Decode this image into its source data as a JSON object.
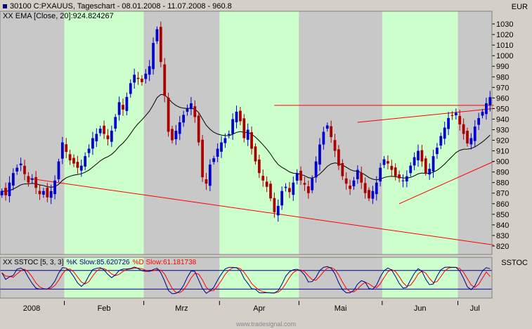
{
  "header": {
    "title": "30100 C:PXAUUS, Tageschart - 08.01.2008 - 11.07.2008 - 960.8",
    "ema_label": "XX EMA [Close, 20]:924.824267",
    "title_square_color": "#000080",
    "ema_square_color": "#000000"
  },
  "right_axis": {
    "currency": "EUR",
    "stoch_label": "SSTOC"
  },
  "stoch_header": {
    "prefix": "XX SSTOC [5, 3, 3]",
    "k_text": "%K Slow:85.620726",
    "d_text": "%D Slow:61.181738",
    "k_color": "#000080",
    "d_color": "#ff0000"
  },
  "colors": {
    "band_green": "#ccffcc",
    "band_grey": "#c8c8c8",
    "candle_up": "#0000cc",
    "candle_down": "#aa0000",
    "ema": "#000000",
    "trendline": "#ff0000",
    "stoch_k": "#000080",
    "stoch_d": "#ff0000"
  },
  "watermark": "www.tradesignal.com",
  "chart_data": {
    "type": "candlestick",
    "title": "30100 C:PXAUUS, Tageschart - 08.01.2008 - 11.07.2008 - 960.8",
    "y_range": [
      812,
      1042
    ],
    "y_ticks": [
      820,
      830,
      840,
      850,
      860,
      870,
      880,
      890,
      900,
      910,
      920,
      930,
      940,
      950,
      960,
      970,
      980,
      990,
      1000,
      1010,
      1020,
      1030
    ],
    "x_month_labels": [
      "2008",
      "Feb",
      "Mrz",
      "Apr",
      "Mai",
      "Jun",
      "Jul"
    ],
    "month_starts": [
      0,
      17,
      38,
      58,
      79,
      101,
      121
    ],
    "bar_count": 133,
    "shaded_months": [
      "Feb",
      "Apr",
      "Jun"
    ],
    "series": [
      {
        "name": "PXAUUS",
        "values": [
          872,
          868,
          880,
          889,
          894,
          898,
          888,
          880,
          884,
          875,
          869,
          872,
          866,
          872,
          882,
          900,
          918,
          909,
          901,
          898,
          894,
          896,
          905,
          912,
          922,
          926,
          931,
          926,
          921,
          929,
          942,
          956,
          949,
          961,
          974,
          982,
          978,
          975,
          983,
          990,
          1012,
          1025,
          994,
          962,
          928,
          920,
          929,
          937,
          944,
          950,
          955,
          942,
          918,
          885,
          879,
          897,
          903,
          912,
          918,
          922,
          926,
          940,
          947,
          938,
          922,
          930,
          912,
          900,
          889,
          882,
          876,
          865,
          852,
          858,
          872,
          876,
          871,
          880,
          889,
          882,
          878,
          870,
          884,
          900,
          916,
          928,
          934,
          923,
          910,
          896,
          886,
          879,
          874,
          882,
          892,
          880,
          870,
          865,
          872,
          880,
          894,
          902,
          898,
          892,
          886,
          884,
          882,
          886,
          896,
          904,
          910,
          900,
          889,
          893,
          905,
          913,
          924,
          932,
          941,
          943,
          946,
          935,
          926,
          917,
          922,
          933,
          941,
          947,
          955,
          960.8
        ]
      },
      {
        "name": "XX EMA [Close, 20]",
        "values": []
      }
    ],
    "ema": {
      "period": 20,
      "last_value": 924.824267
    },
    "trendlines": [
      {
        "from": [
          7,
          884
        ],
        "to": [
          130,
          821
        ]
      },
      {
        "from": [
          72,
          953
        ],
        "to": [
          130,
          953
        ]
      },
      {
        "from": [
          94,
          937
        ],
        "to": [
          130,
          950
        ]
      },
      {
        "from": [
          105,
          860
        ],
        "to": [
          130,
          900
        ]
      }
    ],
    "stochastic": {
      "label": "XX SSTOC [5, 3, 3]",
      "k_last": 85.620726,
      "d_last": 61.181738,
      "range": [
        0,
        100
      ],
      "upper_line": 80,
      "lower_line": 20
    }
  }
}
